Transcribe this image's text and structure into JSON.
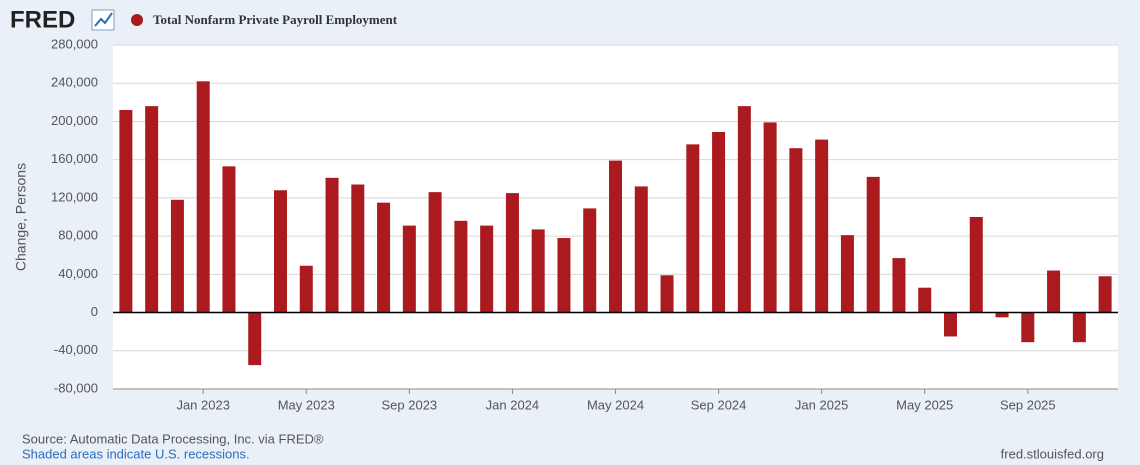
{
  "header": {
    "logo": "FRED"
  },
  "chart_data": {
    "type": "bar",
    "ylabel": "Change, Persons",
    "categories": [
      null,
      null,
      null,
      "Jan 2023",
      null,
      null,
      null,
      "May 2023",
      null,
      null,
      null,
      "Sep 2023",
      null,
      null,
      null,
      "Jan 2024",
      null,
      null,
      null,
      "May 2024",
      null,
      null,
      null,
      "Sep 2024",
      null,
      null,
      null,
      "Jan 2025",
      null,
      null,
      null,
      "May 2025",
      null,
      null,
      null,
      "Sep 2025",
      null,
      null,
      null
    ],
    "series": [
      {
        "name": "Total Nonfarm Private Payroll Employment",
        "color": "#aa1a1f",
        "values": [
          212000,
          216000,
          118000,
          242000,
          153000,
          -55000,
          128000,
          49000,
          141000,
          134000,
          115000,
          91000,
          126000,
          96000,
          91000,
          125000,
          87000,
          78000,
          109000,
          159000,
          132000,
          39000,
          176000,
          189000,
          216000,
          199000,
          172000,
          181000,
          81000,
          142000,
          57000,
          26000,
          -25000,
          100000,
          -5000,
          -31000,
          44000,
          -31000,
          38000
        ]
      }
    ],
    "ylim": [
      -80000,
      280000
    ],
    "yticks": [
      {
        "value": -80000,
        "label": "-80,000"
      },
      {
        "value": -40000,
        "label": "-40,000"
      },
      0,
      {
        "value": 40000,
        "label": "40,000"
      },
      {
        "value": 80000,
        "label": "80,000"
      },
      {
        "value": 120000,
        "label": "120,000"
      },
      {
        "value": 160000,
        "label": "160,000"
      },
      {
        "value": 200000,
        "label": "200,000"
      },
      {
        "value": 240000,
        "label": "240,000"
      },
      {
        "value": 280000,
        "label": "280,000"
      }
    ],
    "grid": true,
    "source": "Source: Automatic Data Processing, Inc. via FRED®",
    "note": "Shaded areas indicate U.S. recessions.",
    "credit": "fred.stlouisfed.org"
  }
}
